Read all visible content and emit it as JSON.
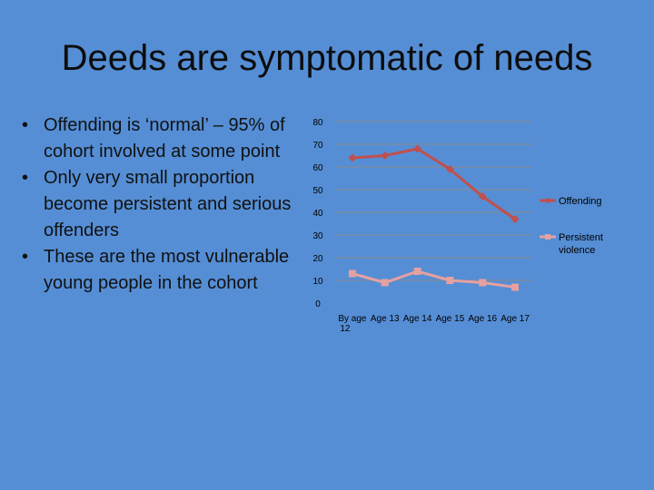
{
  "slide": {
    "title": "Deeds are symptomatic of needs",
    "bullets": [
      "Offending is  ‘normal’ – 95% of cohort involved at some point",
      "Only very small proportion become persistent and serious offenders",
      "These are the most vulnerable young people in the cohort"
    ]
  },
  "chart_data": {
    "type": "line",
    "categories": [
      "By age 12",
      "Age 13",
      "Age 14",
      "Age 15",
      "Age 16",
      "Age 17"
    ],
    "series": [
      {
        "name": "Offending",
        "values": [
          64,
          65,
          68,
          59,
          47,
          37
        ],
        "color": "#c0504d",
        "marker": "diamond"
      },
      {
        "name": "Persistent violence",
        "values": [
          13,
          9,
          14,
          10,
          9,
          7
        ],
        "color": "#e6a0a0",
        "marker": "square"
      }
    ],
    "yticks": [
      0,
      10,
      20,
      30,
      40,
      50,
      60,
      70,
      80
    ],
    "ylim": [
      0,
      80
    ],
    "grid": true,
    "legend": "right"
  }
}
